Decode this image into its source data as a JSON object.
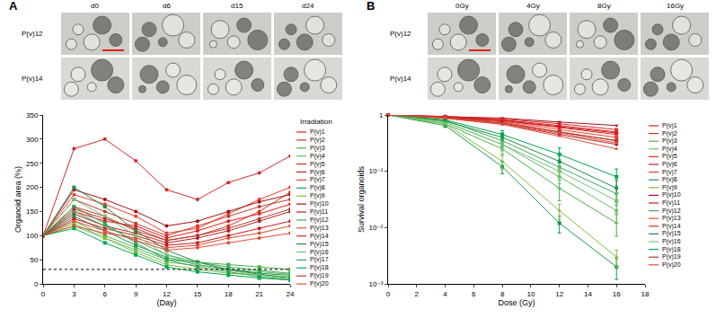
{
  "image_panels": [
    {
      "label": "A",
      "columns": [
        "d0",
        "d6",
        "d15",
        "d24"
      ],
      "rows": [
        "P(v)12",
        "P(v)14"
      ]
    },
    {
      "label": "B",
      "columns": [
        "0Gy",
        "4Gy",
        "8Gy",
        "16Gy"
      ],
      "rows": [
        "P(v)12",
        "P(v)14"
      ]
    }
  ],
  "chart_data": [
    {
      "type": "line",
      "title": "Irradiation",
      "x_label": "(Day)",
      "y_label": "Organoid area (%)",
      "x": [
        0,
        3,
        6,
        9,
        12,
        15,
        18,
        21,
        24
      ],
      "xlim": [
        0,
        24
      ],
      "xticks": [
        0,
        3,
        6,
        9,
        12,
        15,
        18,
        21,
        24
      ],
      "ylim": [
        0,
        350
      ],
      "yticks": [
        0,
        50,
        100,
        150,
        200,
        250,
        300,
        350
      ],
      "threshold": 30,
      "grid": false,
      "legend": "right",
      "series": [
        {
          "name": "P(v)1",
          "color": "#e41a1c",
          "marker": "circle",
          "values": [
            100,
            150,
            130,
            120,
            95,
            110,
            130,
            145,
            165
          ]
        },
        {
          "name": "P(v)2",
          "color": "#c0392b",
          "marker": "circle",
          "values": [
            100,
            175,
            150,
            125,
            100,
            120,
            140,
            160,
            175
          ]
        },
        {
          "name": "P(v)3",
          "color": "#4daf4a",
          "marker": "square",
          "values": [
            100,
            130,
            100,
            75,
            50,
            45,
            40,
            35,
            30
          ]
        },
        {
          "name": "P(v)4",
          "color": "#66bd63",
          "marker": "square",
          "values": [
            100,
            120,
            95,
            70,
            45,
            38,
            30,
            25,
            20
          ]
        },
        {
          "name": "P(v)5",
          "color": "#d7301f",
          "marker": "circle",
          "values": [
            100,
            160,
            140,
            110,
            90,
            100,
            120,
            150,
            190
          ]
        },
        {
          "name": "P(v)6",
          "color": "#b22222",
          "marker": "circle",
          "values": [
            100,
            145,
            120,
            105,
            85,
            95,
            110,
            130,
            150
          ]
        },
        {
          "name": "P(v)7",
          "color": "#ef3b2c",
          "marker": "circle",
          "values": [
            100,
            185,
            165,
            140,
            105,
            115,
            145,
            175,
            200
          ]
        },
        {
          "name": "P(v)8",
          "color": "#1a9850",
          "marker": "square",
          "values": [
            100,
            140,
            110,
            80,
            55,
            40,
            30,
            22,
            18
          ]
        },
        {
          "name": "P(v)9",
          "color": "#7fbc41",
          "marker": "square",
          "values": [
            100,
            125,
            95,
            65,
            40,
            30,
            22,
            18,
            15
          ]
        },
        {
          "name": "P(v)10",
          "color": "#a50f15",
          "marker": "circle",
          "values": [
            100,
            195,
            175,
            150,
            120,
            130,
            150,
            170,
            185
          ]
        },
        {
          "name": "P(v)11",
          "color": "#cb181d",
          "marker": "circle",
          "values": [
            100,
            135,
            115,
            100,
            80,
            85,
            100,
            115,
            130
          ]
        },
        {
          "name": "P(v)12",
          "color": "#41ab5d",
          "marker": "square",
          "values": [
            100,
            150,
            120,
            90,
            60,
            45,
            35,
            28,
            22
          ]
        },
        {
          "name": "P(v)13",
          "color": "#e34a33",
          "marker": "circle",
          "values": [
            100,
            120,
            105,
            95,
            75,
            80,
            95,
            105,
            120
          ]
        },
        {
          "name": "P(v)14",
          "color": "#d62728",
          "marker": "circle",
          "values": [
            100,
            280,
            300,
            255,
            195,
            175,
            210,
            230,
            265
          ]
        },
        {
          "name": "P(v)15",
          "color": "#238b45",
          "marker": "square",
          "values": [
            100,
            200,
            160,
            110,
            70,
            45,
            30,
            20,
            12
          ]
        },
        {
          "name": "P(v)16",
          "color": "#74c476",
          "marker": "square",
          "values": [
            100,
            175,
            140,
            100,
            60,
            40,
            28,
            18,
            10
          ]
        },
        {
          "name": "P(v)17",
          "color": "#31a354",
          "marker": "square",
          "values": [
            100,
            160,
            125,
            85,
            50,
            35,
            25,
            15,
            8
          ]
        },
        {
          "name": "P(v)18",
          "color": "#00a651",
          "marker": "square",
          "values": [
            100,
            115,
            85,
            60,
            35,
            25,
            18,
            12,
            8
          ]
        },
        {
          "name": "P(v)19",
          "color": "#b03a2e",
          "marker": "circle",
          "values": [
            100,
            155,
            135,
            115,
            90,
            100,
            115,
            135,
            155
          ]
        },
        {
          "name": "P(v)20",
          "color": "#e74c3c",
          "marker": "circle",
          "values": [
            100,
            130,
            110,
            90,
            70,
            75,
            85,
            95,
            105
          ]
        }
      ]
    },
    {
      "type": "line",
      "x_label": "Dose (Gy)",
      "y_label": "Survival organoids",
      "x": [
        0,
        4,
        8,
        12,
        16
      ],
      "xlim": [
        0,
        18
      ],
      "xticks": [
        0,
        2,
        4,
        6,
        8,
        10,
        12,
        14,
        16,
        18
      ],
      "ylim": [
        0.001,
        1
      ],
      "log": "y",
      "yticks": [
        {
          "value": 0.001,
          "label": "10⁻³"
        },
        {
          "value": 0.01,
          "label": "10⁻²"
        },
        {
          "value": 0.1,
          "label": "10⁻¹"
        },
        1
      ],
      "grid": false,
      "legend": "right",
      "series": [
        {
          "name": "P(v)1",
          "color": "#e41a1c",
          "marker": "triangle-up",
          "values": [
            1,
            0.92,
            0.8,
            0.6,
            0.45
          ]
        },
        {
          "name": "P(v)2",
          "color": "#c0392b",
          "marker": "circle",
          "values": [
            1,
            0.9,
            0.75,
            0.5,
            0.35
          ]
        },
        {
          "name": "P(v)3",
          "color": "#4daf4a",
          "marker": "triangle-up",
          "values": [
            1,
            0.7,
            0.25,
            0.05,
            0.012
          ],
          "errors": [
            0,
            0.05,
            0.05,
            0.02,
            0.005
          ]
        },
        {
          "name": "P(v)4",
          "color": "#66bd63",
          "marker": "circle",
          "values": [
            1,
            0.75,
            0.3,
            0.08,
            0.02
          ],
          "errors": [
            0,
            0.06,
            0.06,
            0.03,
            0.008
          ]
        },
        {
          "name": "P(v)5",
          "color": "#d7301f",
          "marker": "x",
          "values": [
            1,
            0.93,
            0.82,
            0.65,
            0.5
          ]
        },
        {
          "name": "P(v)6",
          "color": "#b22222",
          "marker": "circle",
          "values": [
            1,
            0.88,
            0.7,
            0.45,
            0.3
          ]
        },
        {
          "name": "P(v)7",
          "color": "#ef3b2c",
          "marker": "square",
          "values": [
            1,
            0.9,
            0.78,
            0.55,
            0.4
          ]
        },
        {
          "name": "P(v)8",
          "color": "#1a9850",
          "marker": "square",
          "values": [
            1,
            0.65,
            0.12,
            0.012,
            0.002
          ],
          "errors": [
            0,
            0.05,
            0.03,
            0.004,
            0.0008
          ]
        },
        {
          "name": "P(v)9",
          "color": "#7fbc41",
          "marker": "triangle-up",
          "values": [
            1,
            0.7,
            0.15,
            0.02,
            0.003
          ],
          "errors": [
            0,
            0.05,
            0.04,
            0.006,
            0.001
          ]
        },
        {
          "name": "P(v)10",
          "color": "#a50f15",
          "marker": "triangle-down",
          "values": [
            1,
            0.95,
            0.88,
            0.75,
            0.65
          ]
        },
        {
          "name": "P(v)11",
          "color": "#cb181d",
          "marker": "diamond",
          "values": [
            1,
            0.92,
            0.8,
            0.62,
            0.48
          ]
        },
        {
          "name": "P(v)12",
          "color": "#41ab5d",
          "marker": "circle",
          "values": [
            1,
            0.8,
            0.35,
            0.12,
            0.04
          ],
          "errors": [
            0,
            0.06,
            0.08,
            0.04,
            0.015
          ]
        },
        {
          "name": "P(v)13",
          "color": "#e34a33",
          "marker": "triangle-up",
          "values": [
            1,
            0.87,
            0.68,
            0.42,
            0.25
          ]
        },
        {
          "name": "P(v)14",
          "color": "#d62728",
          "marker": "x",
          "values": [
            1,
            0.94,
            0.85,
            0.7,
            0.55
          ]
        },
        {
          "name": "P(v)15",
          "color": "#238b45",
          "marker": "circle",
          "values": [
            1,
            0.78,
            0.4,
            0.15,
            0.05
          ],
          "errors": [
            0,
            0.06,
            0.08,
            0.05,
            0.02
          ]
        },
        {
          "name": "P(v)16",
          "color": "#74c476",
          "marker": "square",
          "values": [
            1,
            0.75,
            0.3,
            0.1,
            0.03
          ],
          "errors": [
            0,
            0.05,
            0.07,
            0.04,
            0.012
          ]
        },
        {
          "name": "P(v)18",
          "color": "#00a651",
          "marker": "square",
          "values": [
            1,
            0.82,
            0.45,
            0.2,
            0.08
          ],
          "errors": [
            0,
            0.05,
            0.08,
            0.06,
            0.03
          ]
        },
        {
          "name": "P(v)19",
          "color": "#b03a2e",
          "marker": "square",
          "values": [
            1,
            0.9,
            0.72,
            0.5,
            0.35
          ]
        },
        {
          "name": "P(v)20",
          "color": "#e74c3c",
          "marker": "triangle-down",
          "values": [
            1,
            0.89,
            0.7,
            0.48,
            0.32
          ]
        }
      ]
    }
  ]
}
